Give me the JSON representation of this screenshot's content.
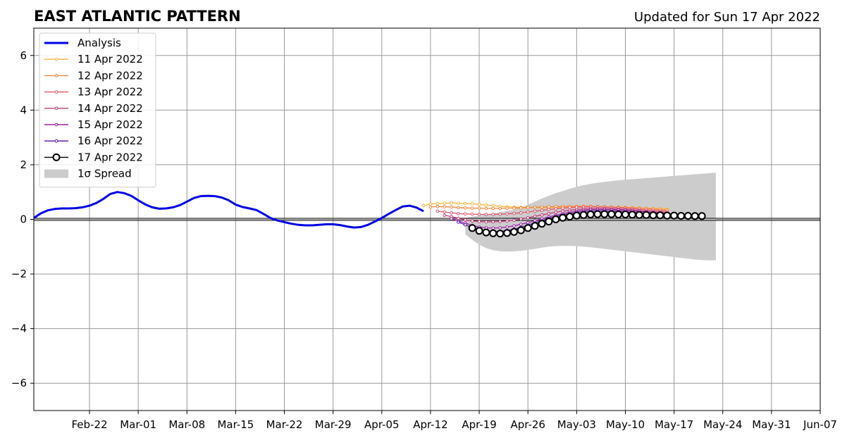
{
  "chart_data": {
    "type": "line",
    "title": "EAST ATLANTIC PATTERN",
    "subtitle": "Updated for Sun 17 Apr 2022",
    "xlabel": "",
    "ylabel": "",
    "xlim": [
      "2022-02-14",
      "2022-06-07"
    ],
    "ylim": [
      -7,
      7
    ],
    "x_ticks": [
      "Feb-22",
      "Mar-01",
      "Mar-08",
      "Mar-15",
      "Mar-22",
      "Mar-29",
      "Apr-05",
      "Apr-12",
      "Apr-19",
      "Apr-26",
      "May-03",
      "May-10",
      "May-17",
      "May-24",
      "May-31",
      "Jun-07"
    ],
    "y_ticks": [
      6,
      4,
      2,
      0,
      -2,
      -4,
      -6
    ],
    "grid": true,
    "legend_position": "top-left",
    "colors": {
      "analysis": "#0000e6",
      "spread": "#cccccc",
      "zero_line": "#000000",
      "grid": "#999999"
    },
    "analysis": {
      "name": "Analysis",
      "start": "2022-02-14",
      "values": [
        0.05,
        0.22,
        0.33,
        0.38,
        0.4,
        0.4,
        0.41,
        0.44,
        0.5,
        0.6,
        0.75,
        0.93,
        1.0,
        0.96,
        0.86,
        0.7,
        0.55,
        0.44,
        0.39,
        0.4,
        0.44,
        0.52,
        0.65,
        0.78,
        0.85,
        0.86,
        0.85,
        0.8,
        0.7,
        0.54,
        0.45,
        0.4,
        0.34,
        0.2,
        0.05,
        -0.04,
        -0.1,
        -0.16,
        -0.2,
        -0.22,
        -0.22,
        -0.2,
        -0.18,
        -0.18,
        -0.21,
        -0.26,
        -0.3,
        -0.28,
        -0.2,
        -0.08,
        0.05,
        0.2,
        0.34,
        0.47,
        0.5,
        0.43,
        0.3
      ]
    },
    "forecasts": [
      {
        "name": "11 Apr 2022",
        "color": "#fbb43f",
        "start": "2022-04-11",
        "values": [
          0.5,
          0.56,
          0.58,
          0.59,
          0.6,
          0.59,
          0.58,
          0.57,
          0.55,
          0.52,
          0.5,
          0.48,
          0.46,
          0.45,
          0.44,
          0.44,
          0.43,
          0.43,
          0.43,
          0.44,
          0.44,
          0.45,
          0.45,
          0.46,
          0.46,
          0.46,
          0.46,
          0.45,
          0.45,
          0.44,
          0.43,
          0.42,
          0.41,
          0.4,
          0.39,
          0.37
        ]
      },
      {
        "name": "12 Apr 2022",
        "color": "#f4873d",
        "start": "2022-04-12",
        "values": [
          0.45,
          0.47,
          0.46,
          0.45,
          0.43,
          0.42,
          0.41,
          0.41,
          0.4,
          0.4,
          0.4,
          0.41,
          0.41,
          0.42,
          0.43,
          0.44,
          0.45,
          0.46,
          0.47,
          0.47,
          0.48,
          0.48,
          0.48,
          0.48,
          0.47,
          0.46,
          0.45,
          0.44,
          0.43,
          0.42,
          0.41,
          0.4,
          0.38,
          0.36,
          0.34
        ]
      },
      {
        "name": "13 Apr 2022",
        "color": "#e0566c",
        "start": "2022-04-13",
        "values": [
          0.3,
          0.27,
          0.24,
          0.21,
          0.2,
          0.19,
          0.18,
          0.18,
          0.18,
          0.19,
          0.2,
          0.22,
          0.24,
          0.27,
          0.3,
          0.33,
          0.36,
          0.39,
          0.41,
          0.43,
          0.44,
          0.45,
          0.45,
          0.45,
          0.44,
          0.43,
          0.42,
          0.41,
          0.39,
          0.37,
          0.35,
          0.33,
          0.31,
          0.29
        ]
      },
      {
        "name": "14 Apr 2022",
        "color": "#c13b7a",
        "start": "2022-04-14",
        "values": [
          0.15,
          0.1,
          0.04,
          -0.02,
          -0.06,
          -0.08,
          -0.09,
          -0.09,
          -0.08,
          -0.06,
          -0.03,
          0.01,
          0.06,
          0.11,
          0.16,
          0.21,
          0.26,
          0.3,
          0.33,
          0.36,
          0.38,
          0.39,
          0.39,
          0.39,
          0.38,
          0.37,
          0.36,
          0.34,
          0.32,
          0.3,
          0.28,
          0.26,
          0.24
        ]
      },
      {
        "name": "15 Apr 2022",
        "color": "#9b24a4",
        "start": "2022-04-15",
        "values": [
          0.02,
          -0.06,
          -0.14,
          -0.22,
          -0.28,
          -0.31,
          -0.32,
          -0.31,
          -0.28,
          -0.24,
          -0.18,
          -0.12,
          -0.05,
          0.02,
          0.09,
          0.15,
          0.21,
          0.26,
          0.3,
          0.33,
          0.35,
          0.36,
          0.36,
          0.35,
          0.34,
          0.33,
          0.31,
          0.29,
          0.27,
          0.25,
          0.23,
          0.21
        ]
      },
      {
        "name": "16 Apr 2022",
        "color": "#5b12a0",
        "start": "2022-04-16",
        "values": [
          -0.1,
          -0.2,
          -0.3,
          -0.38,
          -0.43,
          -0.45,
          -0.44,
          -0.41,
          -0.36,
          -0.29,
          -0.21,
          -0.13,
          -0.05,
          0.03,
          0.1,
          0.16,
          0.21,
          0.25,
          0.28,
          0.3,
          0.31,
          0.31,
          0.3,
          0.29,
          0.28,
          0.26,
          0.24,
          0.22,
          0.2,
          0.18,
          0.16
        ]
      },
      {
        "name": "17 Apr 2022",
        "color": "#000000",
        "start": "2022-04-18",
        "values": [
          -0.32,
          -0.42,
          -0.48,
          -0.51,
          -0.52,
          -0.5,
          -0.46,
          -0.4,
          -0.32,
          -0.24,
          -0.16,
          -0.08,
          0.0,
          0.06,
          0.1,
          0.14,
          0.16,
          0.18,
          0.19,
          0.19,
          0.19,
          0.18,
          0.18,
          0.17,
          0.16,
          0.16,
          0.15,
          0.15,
          0.14,
          0.14,
          0.13,
          0.13,
          0.12,
          0.12
        ]
      }
    ],
    "spread": {
      "name": "1σ Spread",
      "start": "2022-04-17",
      "upper": [
        0.05,
        0.1,
        0.14,
        0.18,
        0.22,
        0.26,
        0.3,
        0.36,
        0.44,
        0.54,
        0.65,
        0.76,
        0.86,
        0.96,
        1.04,
        1.12,
        1.19,
        1.25,
        1.3,
        1.34,
        1.37,
        1.4,
        1.43,
        1.45,
        1.47,
        1.49,
        1.51,
        1.53,
        1.55,
        1.57,
        1.59,
        1.61,
        1.63,
        1.65,
        1.67,
        1.69,
        1.71
      ],
      "lower": [
        -0.55,
        -0.75,
        -0.92,
        -1.05,
        -1.13,
        -1.17,
        -1.18,
        -1.17,
        -1.15,
        -1.12,
        -1.08,
        -1.04,
        -1.0,
        -0.98,
        -0.97,
        -0.97,
        -0.98,
        -1.0,
        -1.02,
        -1.05,
        -1.08,
        -1.11,
        -1.14,
        -1.17,
        -1.2,
        -1.23,
        -1.26,
        -1.29,
        -1.32,
        -1.35,
        -1.38,
        -1.41,
        -1.44,
        -1.47,
        -1.49,
        -1.5,
        -1.5
      ]
    }
  }
}
